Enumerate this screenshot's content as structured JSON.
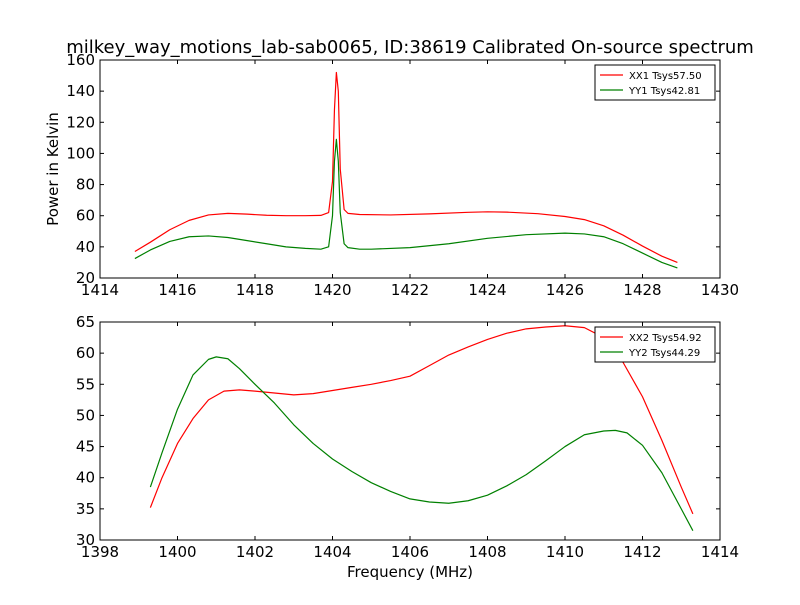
{
  "chart_data": [
    {
      "type": "line",
      "title": "milkey_way_motions_lab-sab0065, ID:38619 Calibrated On-source spectrum",
      "xlabel": "",
      "ylabel": "Power in Kelvin",
      "xlim": [
        1414,
        1430
      ],
      "ylim": [
        20,
        160
      ],
      "xticks": [
        1414,
        1416,
        1418,
        1420,
        1422,
        1424,
        1426,
        1428,
        1430
      ],
      "yticks": [
        20,
        40,
        60,
        80,
        100,
        120,
        140,
        160
      ],
      "grid": false,
      "legend_position": "top-right",
      "colors": {
        "XX1 Tsys57.50": "#ff0000",
        "YY1 Tsys42.81": "#008000"
      },
      "series": [
        {
          "name": "XX1 Tsys57.50",
          "color": "#ff0000",
          "x": [
            1414.9,
            1415.3,
            1415.8,
            1416.3,
            1416.8,
            1417.3,
            1417.8,
            1418.3,
            1418.8,
            1419.3,
            1419.7,
            1419.9,
            1420.0,
            1420.05,
            1420.1,
            1420.15,
            1420.2,
            1420.3,
            1420.4,
            1420.7,
            1421.5,
            1422.5,
            1423.5,
            1424.0,
            1424.5,
            1425.3,
            1426.0,
            1426.5,
            1427.0,
            1427.5,
            1428.0,
            1428.5,
            1428.9
          ],
          "y": [
            37,
            43,
            51,
            57,
            60.5,
            61.5,
            61,
            60.3,
            60,
            60,
            60.2,
            62,
            82,
            128,
            152,
            140,
            90,
            64,
            61.5,
            60.8,
            60.5,
            61.2,
            62.2,
            62.5,
            62.3,
            61.3,
            59.5,
            57.5,
            53.5,
            47.5,
            40.5,
            34,
            30
          ]
        },
        {
          "name": "YY1 Tsys42.81",
          "color": "#008000",
          "x": [
            1414.9,
            1415.3,
            1415.8,
            1416.3,
            1416.8,
            1417.3,
            1417.8,
            1418.3,
            1418.8,
            1419.3,
            1419.7,
            1419.9,
            1420.0,
            1420.05,
            1420.1,
            1420.15,
            1420.2,
            1420.3,
            1420.4,
            1420.7,
            1421.0,
            1422.0,
            1423.0,
            1424.0,
            1425.0,
            1426.0,
            1426.5,
            1427.0,
            1427.5,
            1428.0,
            1428.5,
            1428.9
          ],
          "y": [
            32.5,
            38,
            43.5,
            46.5,
            47,
            46,
            44,
            42,
            40,
            39,
            38.5,
            40,
            60,
            95,
            109,
            95,
            62,
            42,
            39.5,
            38.5,
            38.5,
            39.5,
            42,
            45.5,
            47.8,
            48.8,
            48.3,
            46.5,
            42,
            36,
            30,
            26.5
          ]
        }
      ]
    },
    {
      "type": "line",
      "title": "",
      "xlabel": "Frequency (MHz)",
      "ylabel": "",
      "xlim": [
        1398,
        1414
      ],
      "ylim": [
        30,
        65
      ],
      "xticks": [
        1398,
        1400,
        1402,
        1404,
        1406,
        1408,
        1410,
        1412,
        1414
      ],
      "yticks": [
        30,
        35,
        40,
        45,
        50,
        55,
        60,
        65
      ],
      "grid": false,
      "legend_position": "top-right",
      "colors": {
        "XX2 Tsys54.92": "#ff0000",
        "YY2 Tsys44.29": "#008000"
      },
      "series": [
        {
          "name": "XX2 Tsys54.92",
          "color": "#ff0000",
          "x": [
            1399.3,
            1399.6,
            1400.0,
            1400.4,
            1400.8,
            1401.2,
            1401.6,
            1402.0,
            1402.5,
            1403.0,
            1403.5,
            1404.0,
            1404.5,
            1405.0,
            1405.5,
            1406.0,
            1406.5,
            1407.0,
            1407.5,
            1408.0,
            1408.5,
            1409.0,
            1409.5,
            1410.0,
            1410.5,
            1411.0,
            1411.5,
            1412.0,
            1412.5,
            1413.0,
            1413.3
          ],
          "y": [
            35.2,
            40,
            45.5,
            49.5,
            52.5,
            53.9,
            54.1,
            53.9,
            53.6,
            53.3,
            53.5,
            54,
            54.5,
            55,
            55.6,
            56.3,
            58,
            59.7,
            61,
            62.2,
            63.2,
            63.9,
            64.2,
            64.4,
            64.1,
            62.5,
            58.5,
            53,
            46,
            38.5,
            34.2
          ]
        },
        {
          "name": "YY2 Tsys44.29",
          "color": "#008000",
          "x": [
            1399.3,
            1399.6,
            1400.0,
            1400.4,
            1400.8,
            1401.0,
            1401.3,
            1401.6,
            1402.0,
            1402.5,
            1403.0,
            1403.5,
            1404.0,
            1404.5,
            1405.0,
            1405.5,
            1406.0,
            1406.5,
            1407.0,
            1407.5,
            1408.0,
            1408.5,
            1409.0,
            1409.5,
            1410.0,
            1410.5,
            1411.0,
            1411.3,
            1411.6,
            1412.0,
            1412.5,
            1413.0,
            1413.3
          ],
          "y": [
            38.5,
            44,
            51,
            56.5,
            59,
            59.4,
            59.1,
            57.5,
            55,
            52,
            48.5,
            45.5,
            43,
            41,
            39.2,
            37.8,
            36.6,
            36.1,
            35.9,
            36.3,
            37.2,
            38.7,
            40.5,
            42.7,
            45,
            46.9,
            47.5,
            47.6,
            47.2,
            45.2,
            40.8,
            35,
            31.5
          ]
        }
      ]
    }
  ]
}
